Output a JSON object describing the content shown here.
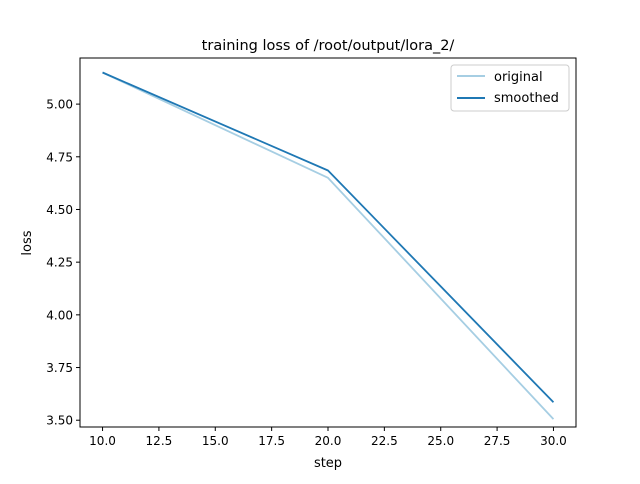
{
  "chart_data": {
    "type": "line",
    "title": "training loss of /root/output/lora_2/",
    "xlabel": "step",
    "ylabel": "loss",
    "xlim": [
      9.0,
      31.0
    ],
    "ylim": [
      3.4678,
      5.2188
    ],
    "xticks": [
      10.0,
      12.5,
      15.0,
      17.5,
      20.0,
      22.5,
      25.0,
      27.5,
      30.0
    ],
    "xtick_labels": [
      "10.0",
      "12.5",
      "15.0",
      "17.5",
      "20.0",
      "22.5",
      "25.0",
      "27.5",
      "30.0"
    ],
    "yticks": [
      3.5,
      3.75,
      4.0,
      4.25,
      4.5,
      4.75,
      5.0
    ],
    "ytick_labels": [
      "3.50",
      "3.75",
      "4.00",
      "4.25",
      "4.50",
      "4.75",
      "5.00"
    ],
    "grid": false,
    "legend_position": "top-right",
    "x": [
      10,
      20,
      30
    ],
    "series": [
      {
        "name": "original",
        "values": [
          5.15,
          4.65,
          3.505
        ],
        "color": "#a6cee3"
      },
      {
        "name": "smoothed",
        "values": [
          5.15,
          4.685,
          3.585
        ],
        "color": "#1f78b4"
      }
    ]
  }
}
